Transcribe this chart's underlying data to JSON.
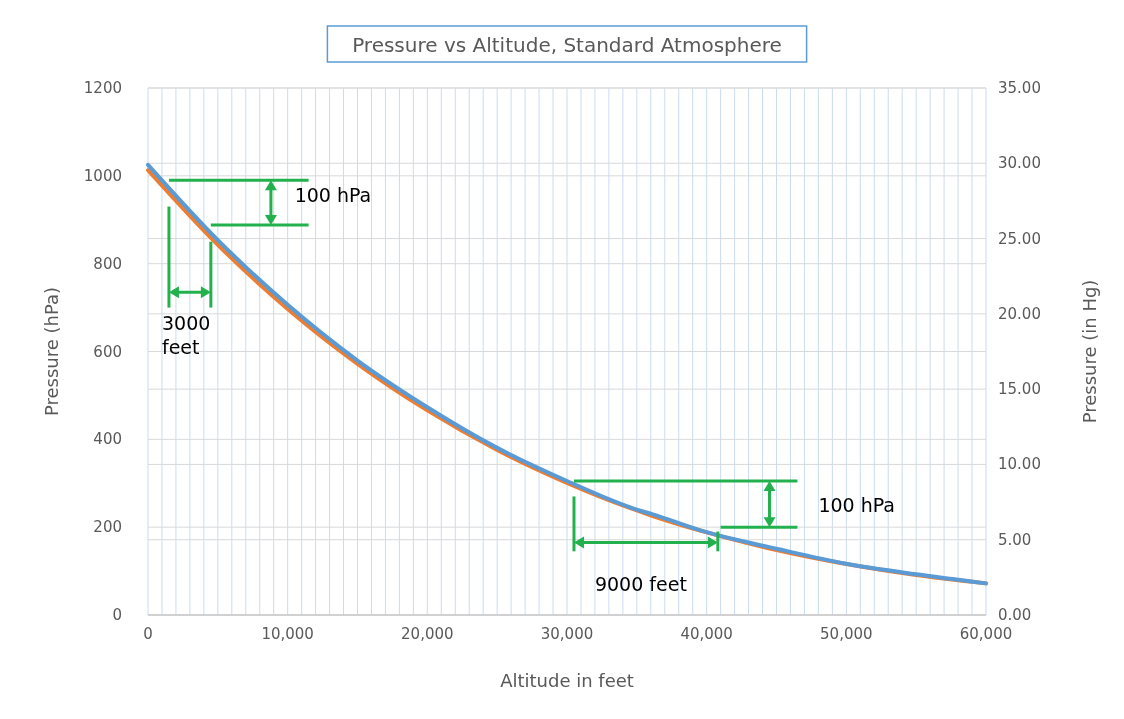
{
  "chart_data": {
    "type": "line",
    "title": "Pressure vs Altitude, Standard Atmosphere",
    "xlabel": "Altitude in feet",
    "ylabel": "Pressure (hPa)",
    "y2label": "Pressure (in Hg)",
    "x": [
      0,
      5000,
      10000,
      15000,
      20000,
      25000,
      30000,
      35000,
      36089,
      40000,
      45000,
      50000,
      55000,
      60000
    ],
    "series": [
      {
        "color": "#ed7d31",
        "values": [
          1013,
          843,
          697,
          572,
          466,
          376,
          301,
          238,
          226,
          188,
          148,
          116,
          91,
          72
        ]
      },
      {
        "color": "#5b9bd5",
        "axis": "y2",
        "values": [
          29.9,
          24.9,
          20.6,
          16.9,
          13.8,
          11.1,
          8.9,
          7.0,
          6.7,
          5.5,
          4.4,
          3.4,
          2.7,
          2.1
        ]
      }
    ],
    "xlim": [
      0,
      60000
    ],
    "xticks": [
      {
        "value": 0,
        "label": "0"
      },
      {
        "value": 1000,
        "label": null
      },
      {
        "value": 2000,
        "label": null
      },
      {
        "value": 3000,
        "label": null
      },
      {
        "value": 4000,
        "label": null
      },
      {
        "value": 5000,
        "label": null
      },
      {
        "value": 6000,
        "label": null
      },
      {
        "value": 7000,
        "label": null
      },
      {
        "value": 8000,
        "label": null
      },
      {
        "value": 9000,
        "label": null
      },
      {
        "value": 10000,
        "label": "10,000"
      },
      {
        "value": 11000,
        "label": null
      },
      {
        "value": 12000,
        "label": null
      },
      {
        "value": 13000,
        "label": null
      },
      {
        "value": 14000,
        "label": null
      },
      {
        "value": 15000,
        "label": null
      },
      {
        "value": 16000,
        "label": null
      },
      {
        "value": 17000,
        "label": null
      },
      {
        "value": 18000,
        "label": null
      },
      {
        "value": 19000,
        "label": null
      },
      {
        "value": 20000,
        "label": "20,000"
      },
      {
        "value": 21000,
        "label": null
      },
      {
        "value": 22000,
        "label": null
      },
      {
        "value": 23000,
        "label": null
      },
      {
        "value": 24000,
        "label": null
      },
      {
        "value": 25000,
        "label": null
      },
      {
        "value": 26000,
        "label": null
      },
      {
        "value": 27000,
        "label": null
      },
      {
        "value": 28000,
        "label": null
      },
      {
        "value": 29000,
        "label": null
      },
      {
        "value": 30000,
        "label": "30,000"
      },
      {
        "value": 31000,
        "label": null
      },
      {
        "value": 32000,
        "label": null
      },
      {
        "value": 33000,
        "label": null
      },
      {
        "value": 34000,
        "label": null
      },
      {
        "value": 35000,
        "label": null
      },
      {
        "value": 36000,
        "label": null
      },
      {
        "value": 37000,
        "label": null
      },
      {
        "value": 38000,
        "label": null
      },
      {
        "value": 39000,
        "label": null
      },
      {
        "value": 40000,
        "label": "40,000"
      },
      {
        "value": 41000,
        "label": null
      },
      {
        "value": 42000,
        "label": null
      },
      {
        "value": 43000,
        "label": null
      },
      {
        "value": 44000,
        "label": null
      },
      {
        "value": 45000,
        "label": null
      },
      {
        "value": 46000,
        "label": null
      },
      {
        "value": 47000,
        "label": null
      },
      {
        "value": 48000,
        "label": null
      },
      {
        "value": 49000,
        "label": null
      },
      {
        "value": 50000,
        "label": "50,000"
      },
      {
        "value": 51000,
        "label": null
      },
      {
        "value": 52000,
        "label": null
      },
      {
        "value": 53000,
        "label": null
      },
      {
        "value": 54000,
        "label": null
      },
      {
        "value": 55000,
        "label": null
      },
      {
        "value": 56000,
        "label": null
      },
      {
        "value": 57000,
        "label": null
      },
      {
        "value": 58000,
        "label": null
      },
      {
        "value": 59000,
        "label": null
      },
      {
        "value": 60000,
        "label": "60,000"
      }
    ],
    "ylim": [
      0,
      1200
    ],
    "yticks": [
      0,
      200,
      400,
      600,
      800,
      1000,
      1200
    ],
    "y2lim": [
      0,
      35
    ],
    "y2ticks": [
      {
        "value": 0,
        "label": "0.00"
      },
      {
        "value": 5,
        "label": "5.00"
      },
      {
        "value": 10,
        "label": "10.00"
      },
      {
        "value": 15,
        "label": "15.00"
      },
      {
        "value": 20,
        "label": "20.00"
      },
      {
        "value": 25,
        "label": "25.00"
      },
      {
        "value": 30,
        "label": "30.00"
      },
      {
        "value": 35,
        "label": "35.00"
      }
    ],
    "grid": true,
    "annotations": [
      {
        "text": "100 hPa",
        "x": 4500,
        "y": 888
      },
      {
        "text": "3000\nfeet",
        "x": 4500,
        "y": 850
      },
      {
        "text": "100 hPa",
        "x": 30500,
        "y": 295
      },
      {
        "text": "9000 feet",
        "x": 40800,
        "y": 190
      }
    ]
  }
}
